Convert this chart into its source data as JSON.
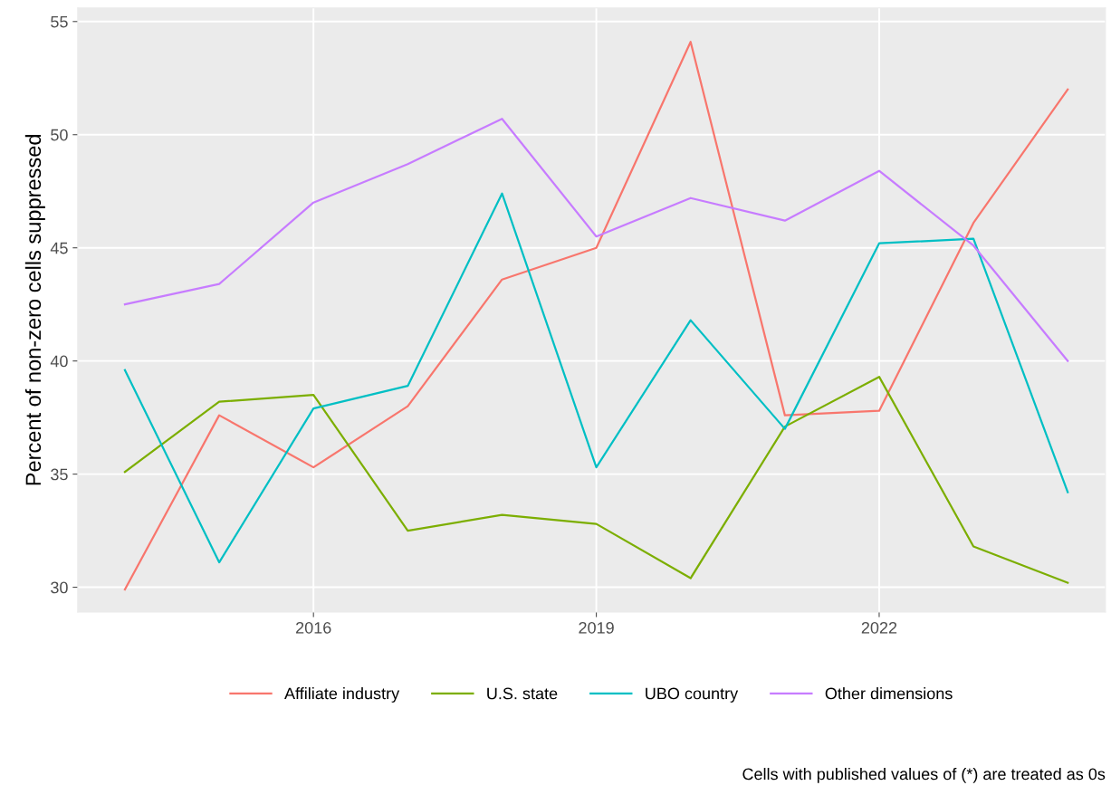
{
  "chart_data": {
    "type": "line",
    "ylabel": "Percent of non-zero cells suppressed",
    "x": [
      2014,
      2015,
      2016,
      2017,
      2018,
      2019,
      2020,
      2021,
      2022,
      2023,
      2024
    ],
    "xlim": [
      2013.5,
      2024.4
    ],
    "xticks": [
      2016,
      2019,
      2022
    ],
    "ylim": [
      28.9,
      55.6
    ],
    "yticks": [
      30,
      35,
      40,
      45,
      50,
      55
    ],
    "grid": true,
    "legend": "bottom",
    "marker": "none",
    "line_style": "solid",
    "series": [
      {
        "name": "Affiliate industry",
        "color": "#f8766d",
        "values": [
          29.9,
          37.6,
          35.3,
          38.0,
          43.6,
          45.0,
          54.1,
          37.6,
          37.8,
          46.1,
          52.0
        ]
      },
      {
        "name": "U.S. state",
        "color": "#7cae00",
        "values": [
          35.1,
          38.2,
          38.5,
          32.5,
          33.2,
          32.8,
          30.4,
          37.1,
          39.3,
          31.8,
          30.2
        ]
      },
      {
        "name": "UBO country",
        "color": "#00bfc4",
        "values": [
          39.6,
          31.1,
          37.9,
          38.9,
          47.4,
          35.3,
          41.8,
          37.0,
          45.2,
          45.4,
          34.2
        ]
      },
      {
        "name": "Other dimensions",
        "color": "#c77cff",
        "values": [
          42.5,
          43.4,
          47.0,
          48.7,
          50.7,
          45.5,
          47.2,
          46.2,
          48.4,
          45.1,
          40.0
        ]
      }
    ],
    "annotations": [
      "Cells with published values of (*) are treated as 0s"
    ]
  }
}
